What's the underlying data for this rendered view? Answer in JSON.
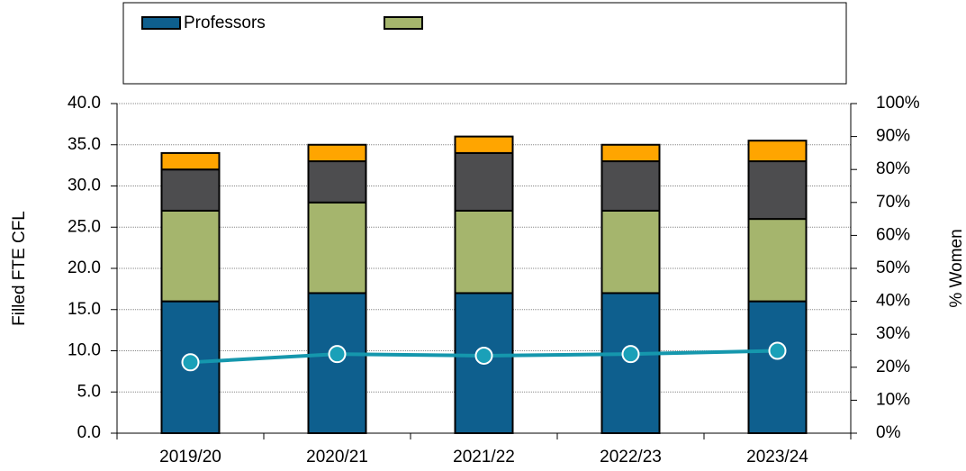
{
  "chart_data": {
    "type": "bar",
    "categories": [
      "2019/20",
      "2020/21",
      "2021/22",
      "2022/23",
      "2023/24"
    ],
    "series": [
      {
        "name": "Professors",
        "color": "#0e5f8e",
        "values": [
          16,
          17,
          17,
          17,
          16
        ]
      },
      {
        "color": "#a5b56d",
        "values": [
          11,
          11,
          10,
          10,
          10
        ]
      },
      {
        "color": "#4d4d4f",
        "values": [
          5,
          5,
          7,
          6,
          7
        ]
      },
      {
        "color": "#ffa500",
        "values": [
          2,
          2,
          2,
          2,
          2.5
        ]
      },
      {
        "type": "line",
        "axis": "y2",
        "color": "#1597ad",
        "values": [
          21.5,
          24,
          23.5,
          24,
          25
        ]
      }
    ],
    "y_label": "Filled FTE CFL",
    "y2_label": "% Women",
    "ylim": [
      0,
      40
    ],
    "yticks": [
      {
        "value": 0,
        "label": "0.0"
      },
      {
        "value": 5,
        "label": "5.0"
      },
      {
        "value": 10,
        "label": "10.0"
      },
      {
        "value": 15,
        "label": "15.0"
      },
      {
        "value": 20,
        "label": "20.0"
      },
      {
        "value": 25,
        "label": "25.0"
      },
      {
        "value": 30,
        "label": "30.0"
      },
      {
        "value": 35,
        "label": "35.0"
      },
      {
        "value": 40,
        "label": "40.0"
      }
    ],
    "y2lim": [
      0,
      100
    ],
    "y2ticks": [
      {
        "value": 0,
        "label": "0%"
      },
      {
        "value": 10,
        "label": "10%"
      },
      {
        "value": 20,
        "label": "20%"
      },
      {
        "value": 30,
        "label": "30%"
      },
      {
        "value": 40,
        "label": "40%"
      },
      {
        "value": 50,
        "label": "50%"
      },
      {
        "value": 60,
        "label": "60%"
      },
      {
        "value": 70,
        "label": "70%"
      },
      {
        "value": 80,
        "label": "80%"
      },
      {
        "value": 90,
        "label": "90%"
      },
      {
        "value": 100,
        "label": "100%"
      }
    ],
    "grid": true,
    "legend": "top"
  }
}
